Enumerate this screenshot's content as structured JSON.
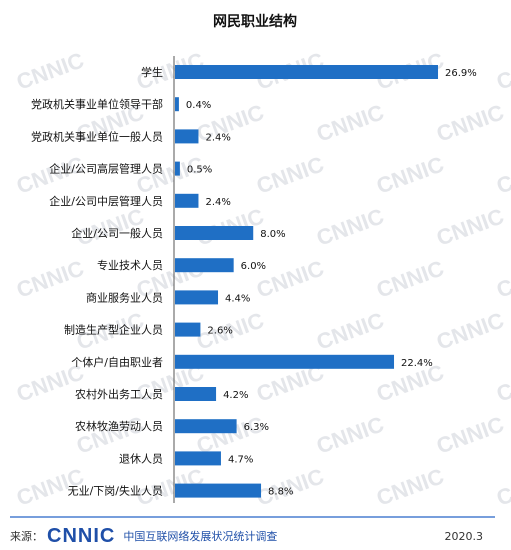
{
  "chart_data": {
    "type": "bar",
    "orientation": "horizontal",
    "title": "网民职业结构",
    "categories": [
      "学生",
      "党政机关事业单位领导干部",
      "党政机关事业单位一般人员",
      "企业/公司高层管理人员",
      "企业/公司中层管理人员",
      "企业/公司一般人员",
      "专业技术人员",
      "商业服务业人员",
      "制造生产型企业人员",
      "个体户/自由职业者",
      "农村外出务工人员",
      "农林牧渔劳动人员",
      "退休人员",
      "无业/下岗/失业人员"
    ],
    "values": [
      26.9,
      0.4,
      2.4,
      0.5,
      2.4,
      8.0,
      6.0,
      4.4,
      2.6,
      22.4,
      4.2,
      6.3,
      4.7,
      8.8
    ],
    "value_labels": [
      "26.9%",
      "0.4%",
      "2.4%",
      "0.5%",
      "2.4%",
      "8.0%",
      "6.0%",
      "4.4%",
      "2.6%",
      "22.4%",
      "4.2%",
      "6.3%",
      "4.7%",
      "8.8%"
    ],
    "xlim": [
      0,
      27
    ],
    "bar_color": "#1f6fc5",
    "grid": false
  },
  "watermark": "CNNIC",
  "footer": {
    "source_label": "来源：",
    "logo_text": "CNNIC",
    "org_text": "中国互联网络发展状况统计调查",
    "date": "2020.3"
  }
}
